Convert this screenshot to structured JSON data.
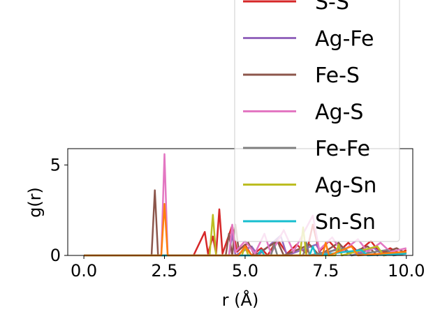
{
  "chart_data": {
    "type": "line",
    "xlabel": "r (Å)",
    "ylabel": "g(r)",
    "xlim": [
      -0.5,
      10.2
    ],
    "ylim": [
      0,
      5.9
    ],
    "xticks": [
      0.0,
      2.5,
      5.0,
      7.5,
      10.0
    ],
    "xtick_labels": [
      "0.0",
      "2.5",
      "5.0",
      "7.5",
      "10.0"
    ],
    "yticks": [
      0,
      5
    ],
    "ytick_labels": [
      "0",
      "5"
    ],
    "grid": false,
    "legend_placement": "top-right",
    "series": [
      {
        "name": "S-S",
        "color": "#d62728",
        "points": [
          [
            0,
            0
          ],
          [
            3.4,
            0
          ],
          [
            3.75,
            1.3
          ],
          [
            3.85,
            0.1
          ],
          [
            4.0,
            1.05
          ],
          [
            4.1,
            0.1
          ],
          [
            4.2,
            2.55
          ],
          [
            4.3,
            0.1
          ],
          [
            4.6,
            1.65
          ],
          [
            4.75,
            0.2
          ],
          [
            5.0,
            0.6
          ],
          [
            5.2,
            0
          ],
          [
            5.5,
            0.4
          ],
          [
            5.7,
            0
          ],
          [
            6.0,
            0.9
          ],
          [
            6.3,
            0.1
          ],
          [
            6.6,
            0.6
          ],
          [
            6.9,
            0.1
          ],
          [
            7.1,
            1.7
          ],
          [
            7.3,
            0.2
          ],
          [
            7.6,
            0.8
          ],
          [
            7.9,
            0.2
          ],
          [
            8.2,
            0.7
          ],
          [
            8.5,
            0.2
          ],
          [
            8.9,
            0.8
          ],
          [
            9.2,
            0.1
          ],
          [
            9.5,
            0.4
          ],
          [
            9.8,
            0.1
          ],
          [
            10.0,
            0.3
          ]
        ]
      },
      {
        "name": "Ag-Fe",
        "color": "#9467bd",
        "points": [
          [
            0,
            0
          ],
          [
            4.5,
            0
          ],
          [
            4.6,
            1.2
          ],
          [
            4.7,
            0
          ],
          [
            5.2,
            0.5
          ],
          [
            5.4,
            0
          ],
          [
            6.1,
            1.1
          ],
          [
            6.3,
            0
          ],
          [
            7.2,
            0.6
          ],
          [
            7.4,
            0
          ],
          [
            8.0,
            0.5
          ],
          [
            8.3,
            0
          ],
          [
            9.0,
            0.4
          ],
          [
            9.3,
            0
          ],
          [
            10.0,
            0.2
          ]
        ]
      },
      {
        "name": "Fe-S",
        "color": "#8c564b",
        "points": [
          [
            0,
            0
          ],
          [
            2.1,
            0
          ],
          [
            2.2,
            3.6
          ],
          [
            2.3,
            0
          ],
          [
            4.4,
            0
          ],
          [
            4.5,
            1.2
          ],
          [
            4.6,
            0
          ],
          [
            4.7,
            1.7
          ],
          [
            4.8,
            0.3
          ],
          [
            5.1,
            0.7
          ],
          [
            5.3,
            0
          ],
          [
            6.0,
            0.8
          ],
          [
            6.2,
            0
          ],
          [
            7.0,
            0.6
          ],
          [
            7.3,
            0
          ],
          [
            7.9,
            0.7
          ],
          [
            8.2,
            0.1
          ],
          [
            8.8,
            0.5
          ],
          [
            9.1,
            0
          ],
          [
            9.7,
            0.4
          ],
          [
            10.0,
            0.1
          ]
        ]
      },
      {
        "name": "Ag-S",
        "color": "#e377c2",
        "points": [
          [
            0,
            0
          ],
          [
            2.4,
            0
          ],
          [
            2.5,
            5.6
          ],
          [
            2.6,
            0
          ],
          [
            4.5,
            0
          ],
          [
            4.6,
            1.7
          ],
          [
            4.7,
            0.2
          ],
          [
            5.0,
            0.8
          ],
          [
            5.3,
            0.1
          ],
          [
            5.6,
            1.2
          ],
          [
            5.8,
            0.1
          ],
          [
            6.2,
            1.4
          ],
          [
            6.5,
            0.2
          ],
          [
            7.1,
            2.2
          ],
          [
            7.3,
            0.3
          ],
          [
            7.7,
            1.0
          ],
          [
            8.0,
            0.2
          ],
          [
            8.5,
            0.9
          ],
          [
            8.8,
            0.2
          ],
          [
            9.2,
            0.7
          ],
          [
            9.5,
            0.2
          ],
          [
            10.0,
            0.4
          ]
        ]
      },
      {
        "name": "Fe-Fe",
        "color": "#7f7f7f",
        "points": [
          [
            0,
            0
          ],
          [
            5.8,
            0
          ],
          [
            5.9,
            0.6
          ],
          [
            6.0,
            0
          ],
          [
            6.8,
            0
          ],
          [
            6.9,
            0.7
          ],
          [
            7.0,
            0
          ],
          [
            8.1,
            0.4
          ],
          [
            8.3,
            0
          ],
          [
            9.4,
            0.3
          ],
          [
            9.6,
            0
          ],
          [
            10.0,
            0.1
          ]
        ]
      },
      {
        "name": "Ag-Sn",
        "color": "#bcbd22",
        "points": [
          [
            0,
            0
          ],
          [
            3.9,
            0
          ],
          [
            4.0,
            2.25
          ],
          [
            4.1,
            0
          ],
          [
            4.9,
            0
          ],
          [
            5.0,
            0.5
          ],
          [
            5.1,
            0
          ],
          [
            6.7,
            0
          ],
          [
            6.8,
            1.55
          ],
          [
            6.9,
            0
          ],
          [
            7.8,
            0
          ],
          [
            7.9,
            0.6
          ],
          [
            8.0,
            0
          ],
          [
            9.1,
            0.5
          ],
          [
            9.3,
            0
          ],
          [
            10.0,
            0.2
          ]
        ]
      },
      {
        "name": "Sn-Sn",
        "color": "#17becf",
        "points": [
          [
            0,
            0
          ],
          [
            5.4,
            0
          ],
          [
            5.5,
            0.3
          ],
          [
            5.6,
            0
          ],
          [
            7.0,
            0
          ],
          [
            7.1,
            0.5
          ],
          [
            7.2,
            0
          ],
          [
            8.6,
            0.3
          ],
          [
            8.8,
            0
          ],
          [
            10.0,
            0.1
          ]
        ]
      },
      {
        "name": "",
        "color": "#ff7f0e",
        "points": [
          [
            0,
            0
          ],
          [
            2.4,
            0
          ],
          [
            2.5,
            2.85
          ],
          [
            2.6,
            0
          ],
          [
            4.8,
            0
          ],
          [
            5.0,
            0.5
          ],
          [
            5.2,
            0
          ],
          [
            7.4,
            0
          ],
          [
            7.5,
            0.7
          ],
          [
            7.6,
            0
          ],
          [
            8.3,
            0.5
          ],
          [
            8.5,
            0
          ],
          [
            10.0,
            0.2
          ]
        ]
      }
    ]
  }
}
